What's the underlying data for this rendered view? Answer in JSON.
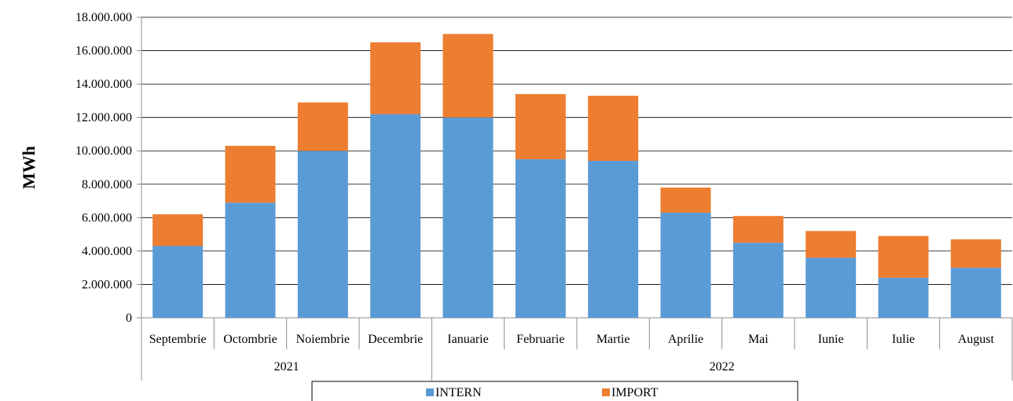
{
  "chart_data": {
    "type": "bar",
    "stacked": true,
    "ylabel": "MWh",
    "xlabel": "",
    "ylim": [
      0,
      18000000
    ],
    "yticks": [
      0,
      2000000,
      4000000,
      6000000,
      8000000,
      10000000,
      12000000,
      14000000,
      16000000,
      18000000
    ],
    "ytick_labels": [
      "0",
      "2.000.000",
      "4.000.000",
      "6.000.000",
      "8.000.000",
      "10.000.000",
      "12.000.000",
      "14.000.000",
      "16.000.000",
      "18.000.000"
    ],
    "grid": true,
    "legend_position": "bottom",
    "categories": [
      "Septembrie",
      "Octombrie",
      "Noiembrie",
      "Decembrie",
      "Ianuarie",
      "Februarie",
      "Martie",
      "Aprilie",
      "Mai",
      "Iunie",
      "Iulie",
      "August"
    ],
    "groups": [
      {
        "label": "2021",
        "count": 4
      },
      {
        "label": "2022",
        "count": 8
      }
    ],
    "series": [
      {
        "name": "INTERN",
        "color": "#5B9BD5",
        "values": [
          4300000,
          6900000,
          10000000,
          12200000,
          12000000,
          9500000,
          9400000,
          6300000,
          4500000,
          3600000,
          2400000,
          3000000
        ]
      },
      {
        "name": "IMPORT",
        "color": "#ED7D31",
        "values": [
          1900000,
          3400000,
          2900000,
          4300000,
          5000000,
          3900000,
          3900000,
          1500000,
          1600000,
          1600000,
          2500000,
          1700000
        ]
      }
    ]
  }
}
